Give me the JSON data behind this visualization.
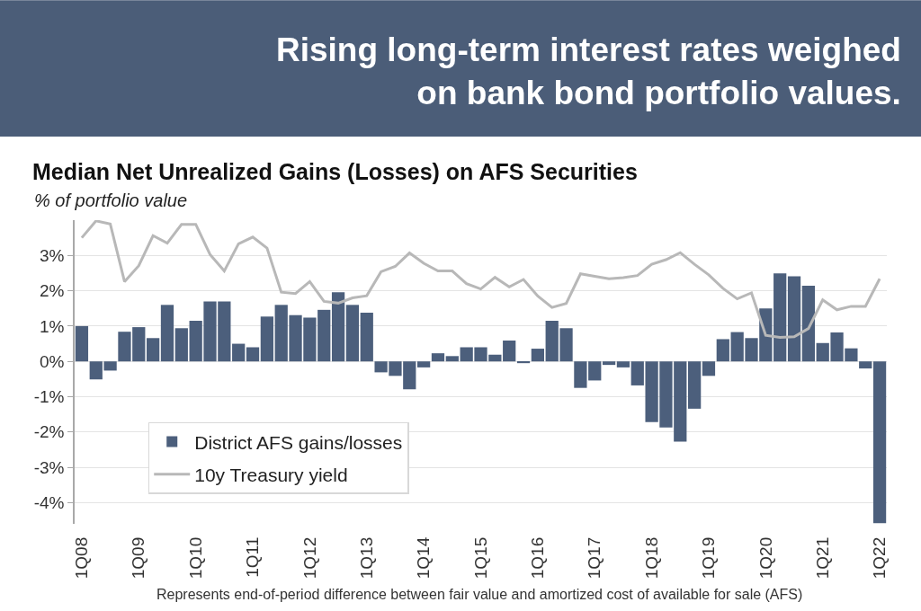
{
  "chart_data": {
    "type": "bar",
    "title": "Median Net Unrealized Gains (Losses) on AFS Securities",
    "subtitle": "% of portfolio value",
    "annotations": [
      "Rising long-term interest rates weighed on bank bond portfolio values.",
      "Represents end-of-period difference between fair value and amortized cost of available for sale (AFS)"
    ],
    "categories": [
      "1Q08",
      null,
      null,
      null,
      "1Q09",
      null,
      null,
      null,
      "1Q10",
      null,
      null,
      null,
      "1Q11",
      null,
      null,
      null,
      "1Q12",
      null,
      null,
      null,
      "1Q13",
      null,
      null,
      null,
      "1Q14",
      null,
      null,
      null,
      "1Q15",
      null,
      null,
      null,
      "1Q16",
      null,
      null,
      null,
      "1Q17",
      null,
      null,
      null,
      "1Q18",
      null,
      null,
      null,
      "1Q19",
      null,
      null,
      null,
      "1Q20",
      null,
      null,
      null,
      "1Q21",
      null,
      null,
      null,
      "1Q22"
    ],
    "series": [
      {
        "name": "District AFS gains/losses",
        "color": "#4c5f7c",
        "values": [
          1.0,
          -0.51,
          -0.26,
          0.84,
          0.97,
          0.66,
          1.6,
          0.94,
          1.15,
          1.7,
          1.7,
          0.5,
          0.4,
          1.27,
          1.6,
          1.31,
          1.24,
          1.46,
          1.96,
          1.6,
          1.38,
          -0.31,
          -0.41,
          -0.79,
          -0.17,
          0.23,
          0.15,
          0.4,
          0.4,
          0.19,
          0.59,
          -0.05,
          0.36,
          1.15,
          0.94,
          -0.75,
          -0.54,
          -0.1,
          -0.17,
          -0.68,
          -1.72,
          -1.87,
          -2.27,
          -1.34,
          -0.41,
          0.63,
          0.83,
          0.66,
          1.5,
          2.49,
          2.41,
          2.14,
          0.52,
          0.82,
          0.37,
          -0.2,
          -4.58
        ]
      },
      {
        "name": "10y Treasury yield",
        "type": "line",
        "color": "#b8b8b8",
        "values": [
          3.5,
          3.98,
          3.89,
          2.26,
          2.71,
          3.56,
          3.35,
          3.88,
          3.88,
          3.03,
          2.56,
          3.33,
          3.52,
          3.21,
          1.96,
          1.92,
          2.26,
          1.7,
          1.65,
          1.8,
          1.86,
          2.54,
          2.69,
          3.07,
          2.78,
          2.56,
          2.56,
          2.2,
          2.05,
          2.38,
          2.11,
          2.32,
          1.85,
          1.53,
          1.64,
          2.48,
          2.41,
          2.34,
          2.37,
          2.43,
          2.75,
          2.88,
          3.08,
          2.75,
          2.45,
          2.07,
          1.77,
          1.94,
          0.74,
          0.68,
          0.7,
          0.93,
          1.74,
          1.46,
          1.56,
          1.56,
          2.34
        ]
      }
    ],
    "ylim": [
      -4.6,
      4.0
    ],
    "yticks": [
      {
        "value": -4,
        "label": "-4%"
      },
      {
        "value": -3,
        "label": "-3%"
      },
      {
        "value": -2,
        "label": "-2%"
      },
      {
        "value": -1,
        "label": "-1%"
      },
      {
        "value": 0,
        "label": "0%"
      },
      {
        "value": 1,
        "label": "1%"
      },
      {
        "value": 2,
        "label": "2%"
      },
      {
        "value": 3,
        "label": "3%"
      }
    ],
    "grid": "y",
    "legend": "bottom left"
  }
}
